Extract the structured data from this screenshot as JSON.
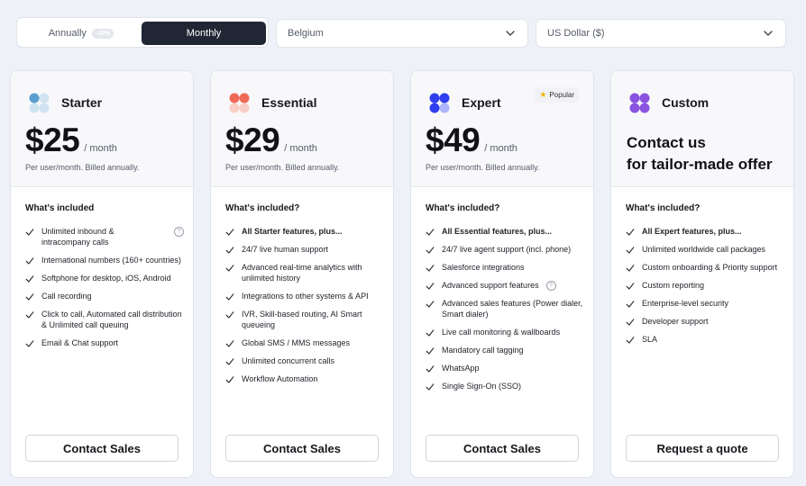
{
  "billing_toggle": {
    "annual_label": "Annually",
    "annual_badge": "-20%",
    "monthly_label": "Monthly"
  },
  "country_select": {
    "value": "Belgium"
  },
  "currency_select": {
    "value": "US Dollar ($)"
  },
  "colors": {
    "starter": "#5b9fd0",
    "essential": "#ef6a55",
    "expert": "#2f3ff0",
    "custom": "#8a53e0",
    "popular_star": "#f4b400"
  },
  "plans": [
    {
      "name": "Starter",
      "price": "$25",
      "period": "/ month",
      "billing": "Per user/month. Billed annually.",
      "included_title": "What's included",
      "features": [
        "Unlimited inbound & intracompany calls",
        "International numbers (160+ countries)",
        "Softphone for desktop, iOS, Android",
        "Call recording",
        "Click to call, Automated call distribution & Unlimited call queuing",
        "Email & Chat support"
      ],
      "cta": "Contact Sales"
    },
    {
      "name": "Essential",
      "price": "$29",
      "period": "/ month",
      "billing": "Per user/month. Billed annually.",
      "included_title": "What's included?",
      "features": [
        "All Starter features, plus...",
        "24/7 live human support",
        "Advanced real-time analytics with unlimited history",
        "Integrations to other systems & API",
        "IVR, Skill-based routing, AI Smart queueing",
        "Global SMS / MMS messages",
        "Unlimited concurrent calls",
        "Workflow Automation"
      ],
      "cta": "Contact Sales"
    },
    {
      "name": "Expert",
      "badge": "Popular",
      "price": "$49",
      "period": "/ month",
      "billing": "Per user/month. Billed annually.",
      "included_title": "What's included?",
      "features": [
        "All Essential features, plus...",
        "24/7 live agent support (incl. phone)",
        "Salesforce integrations",
        "Advanced support features",
        "Advanced sales features (Power dialer, Smart dialer)",
        "Live call monitoring & wallboards",
        "Mandatory call tagging",
        "WhatsApp",
        "Single Sign-On (SSO)"
      ],
      "cta": "Contact Sales"
    },
    {
      "name": "Custom",
      "contact_line1": "Contact us",
      "contact_line2": "for tailor-made offer",
      "included_title": "What's included?",
      "features": [
        "All Expert features, plus...",
        "Unlimited worldwide call packages",
        "Custom onboarding & Priority support",
        "Custom reporting",
        "Enterprise-level security",
        "Developer support",
        "SLA"
      ],
      "cta": "Request a quote"
    }
  ]
}
